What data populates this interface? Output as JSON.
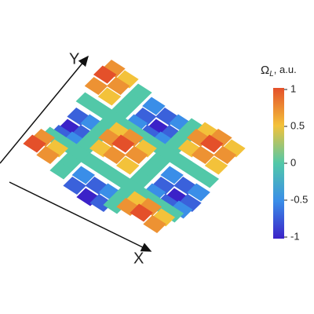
{
  "chart_data": {
    "type": "surface",
    "x_label": "X",
    "y_label": "Y",
    "colorbar_label": {
      "symbol": "Ω",
      "subscript": "L",
      "unit": ", a.u."
    },
    "clim": [
      -1,
      1
    ],
    "cticks": [
      1,
      0.5,
      0,
      -0.5,
      -1
    ],
    "colormap": [
      "#3b22c8",
      "#3a8ee8",
      "#52c8a8",
      "#f3c23a",
      "#e4502a"
    ],
    "z": [
      [
        1,
        0.71,
        0,
        -0.71,
        -1,
        -0.71,
        0,
        0.71,
        1,
        0.71
      ],
      [
        0.71,
        0.5,
        0,
        -0.5,
        -0.71,
        -0.5,
        0,
        0.5,
        0.71,
        0.5
      ],
      [
        0,
        0,
        0,
        0,
        0,
        0,
        0,
        0,
        0,
        0
      ],
      [
        -0.71,
        -0.5,
        0,
        0.5,
        0.71,
        0.5,
        0,
        -0.5,
        -0.71,
        -0.5
      ],
      [
        -1,
        -0.71,
        0,
        0.71,
        1,
        0.71,
        0,
        -0.71,
        -1,
        -0.71
      ],
      [
        -0.71,
        -0.5,
        0,
        0.5,
        0.71,
        0.5,
        0,
        -0.5,
        -0.71,
        -0.5
      ],
      [
        0,
        0,
        0,
        0,
        0,
        0,
        0,
        0,
        0,
        0
      ],
      [
        0.71,
        0.5,
        0,
        -0.5,
        -0.71,
        -0.5,
        0,
        0.5,
        0.71,
        0.5
      ],
      [
        1,
        0.71,
        0,
        -0.71,
        -1,
        -0.71,
        0,
        0.71,
        1,
        0.71
      ],
      [
        0.71,
        0.5,
        0,
        -0.5,
        -0.71,
        -0.5,
        0,
        0.5,
        0.71,
        0.5
      ]
    ]
  }
}
